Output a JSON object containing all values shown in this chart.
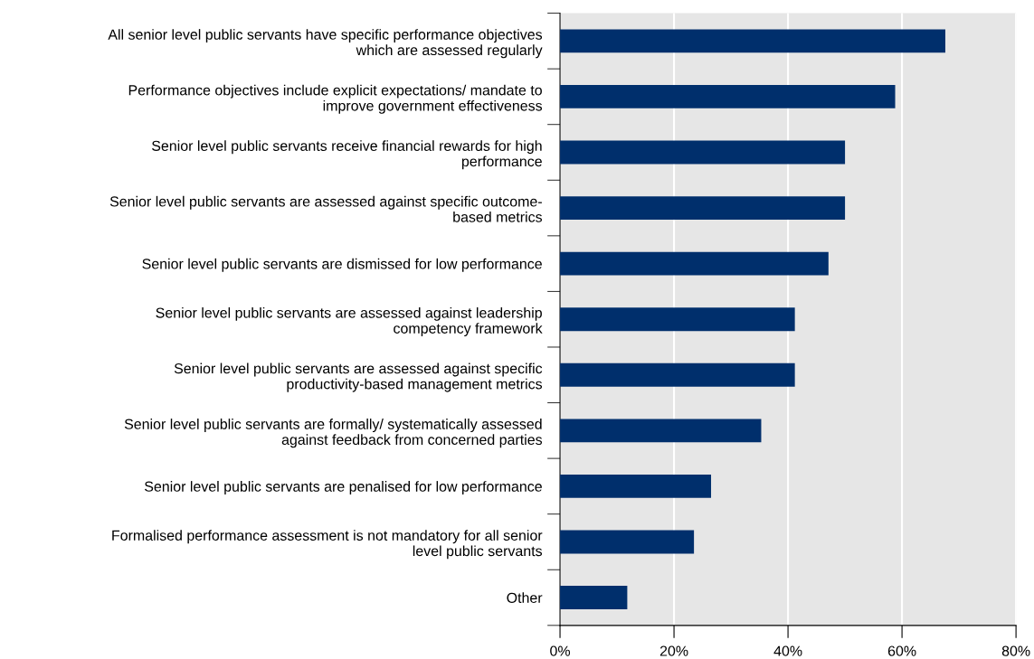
{
  "chart_data": {
    "type": "bar",
    "orientation": "horizontal",
    "categories": [
      "All senior level public servants have specific performance objectives\nwhich are assessed regularly",
      "Performance objectives include explicit expectations/ mandate to\nimprove government effectiveness",
      "Senior level public servants receive financial rewards for high\nperformance",
      "Senior level public servants are assessed against specific outcome-\nbased metrics",
      "Senior level public servants are dismissed for low performance",
      "Senior level public servants are assessed against leadership\ncompetency framework",
      "Senior level public servants are assessed against specific\nproductivity-based management metrics",
      "Senior level public servants are formally/ systematically assessed\nagainst feedback from concerned parties",
      "Senior level public servants are penalised for low performance",
      "Formalised performance assessment is not mandatory for all senior\nlevel public servants",
      "Other"
    ],
    "values": [
      67.6,
      58.8,
      50.0,
      50.0,
      47.1,
      41.2,
      41.2,
      35.3,
      26.5,
      23.5,
      11.8
    ],
    "color": "#002f6c",
    "xlim": [
      0,
      80
    ],
    "xticks": [
      {
        "value": 0,
        "label": "0%"
      },
      {
        "value": 20,
        "label": "20%"
      },
      {
        "value": 40,
        "label": "40%"
      },
      {
        "value": 60,
        "label": "60%"
      },
      {
        "value": 80,
        "label": "80%"
      }
    ],
    "grid": "x",
    "legend": false
  }
}
